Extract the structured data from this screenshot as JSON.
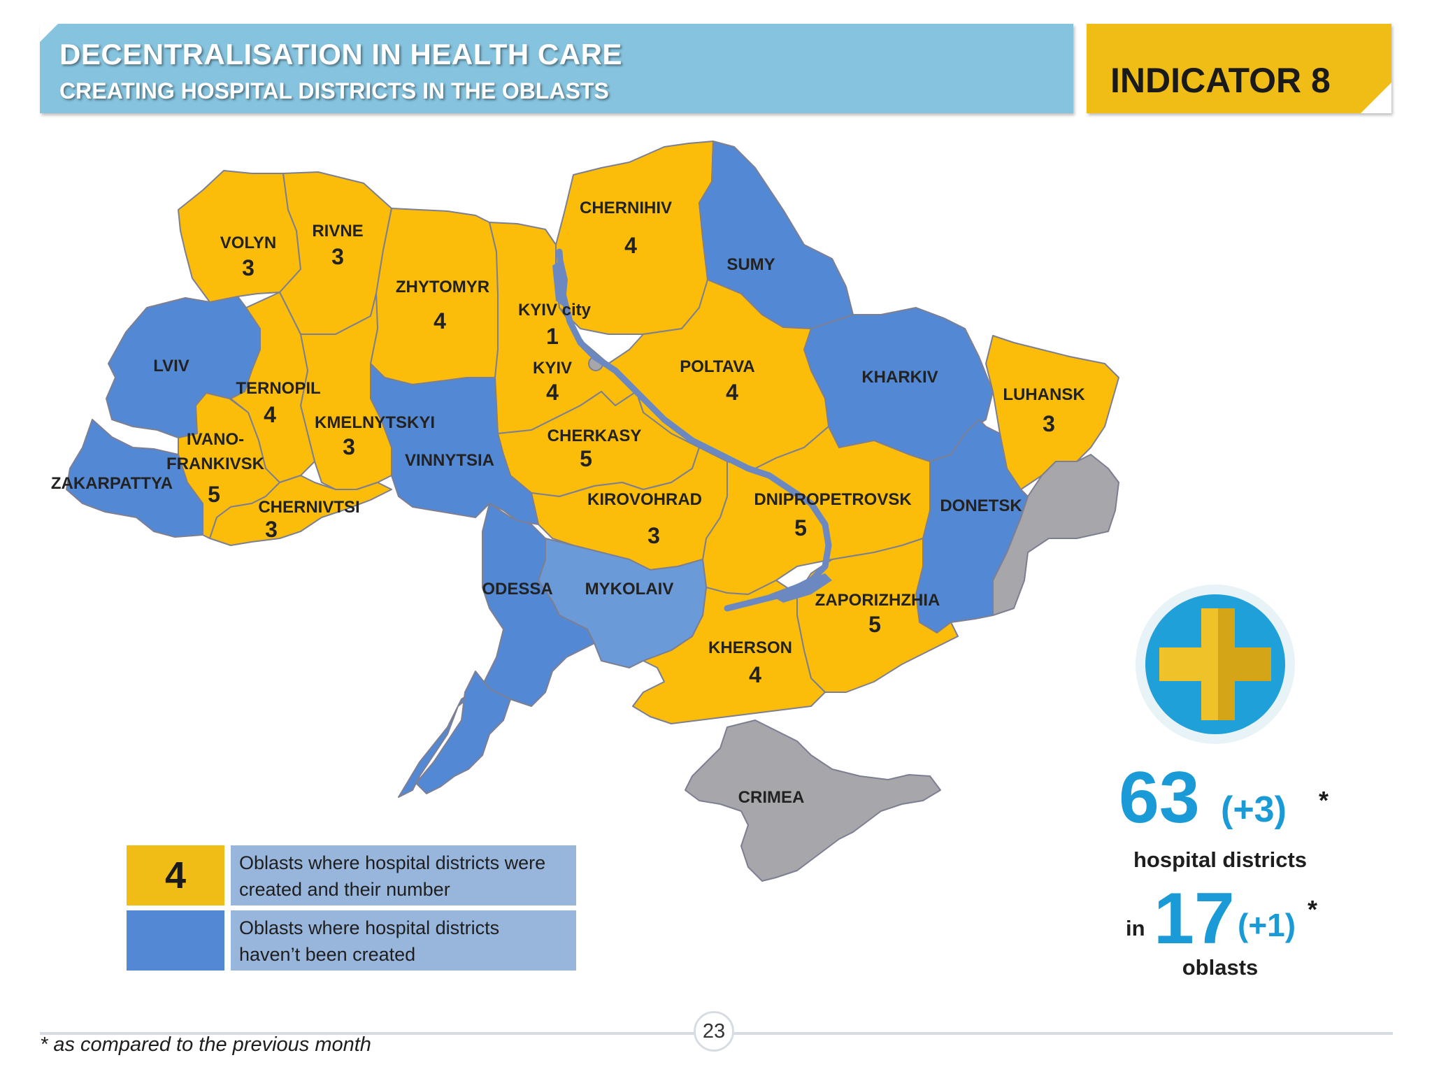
{
  "header": {
    "title": "DECENTRALISATION IN HEALTH CARE",
    "subtitle": "CREATING HOSPITAL DISTRICTS IN THE OBLASTS",
    "indicator": "INDICATOR 8"
  },
  "colors": {
    "created": "#fcbd0a",
    "not_created": "#5389d4",
    "mykolaiv": "#6b9ad9",
    "occupied": "#a7a6ab",
    "header_bg": "#86c3de",
    "indicator_bg": "#f0bd16",
    "stat_blue": "#1a9ad6"
  },
  "regions": {
    "volyn": {
      "name": "VOLYN",
      "count": "3"
    },
    "rivne": {
      "name": "RIVNE",
      "count": "3"
    },
    "zhytomyr": {
      "name": "ZHYTOMYR",
      "count": "4"
    },
    "chernihiv": {
      "name": "CHERNIHIV",
      "count": "4"
    },
    "sumy": {
      "name": "SUMY"
    },
    "kyiv_city": {
      "name": "KYIV city",
      "count": "1"
    },
    "kyiv": {
      "name": "KYIV",
      "count": "4"
    },
    "poltava": {
      "name": "POLTAVA",
      "count": "4"
    },
    "kharkiv": {
      "name": "KHARKIV"
    },
    "luhansk": {
      "name": "LUHANSK",
      "count": "3"
    },
    "lviv": {
      "name": "LVIV"
    },
    "ternopil": {
      "name": "TERNOPIL",
      "count": "4"
    },
    "khmelnytskyi": {
      "name": "KMELNYTSKYI",
      "count": "3"
    },
    "vinnytsia": {
      "name": "VINNYTSIA"
    },
    "cherkasy": {
      "name": "CHERKASY",
      "count": "5"
    },
    "ivano_frankivsk": {
      "name_line1": "IVANO-",
      "name_line2": "FRANKIVSK",
      "count": "5"
    },
    "zakarpattya": {
      "name": "ZAKARPATTYA"
    },
    "chernivtsi": {
      "name": "CHERNIVTSI",
      "count": "3"
    },
    "kirovohrad": {
      "name": "KIROVOHRAD",
      "count": "3"
    },
    "dnipropetrovsk": {
      "name": "DNIPROPETROVSK",
      "count": "5"
    },
    "donetsk": {
      "name": "DONETSK"
    },
    "odessa": {
      "name": "ODESSA"
    },
    "mykolaiv": {
      "name": "MYKOLAIV"
    },
    "zaporizhzhia": {
      "name": "ZAPORIZHZHIA",
      "count": "5"
    },
    "kherson": {
      "name": "KHERSON",
      "count": "4"
    },
    "crimea": {
      "name": "CRIMEA"
    }
  },
  "legend": {
    "sample_number": "4",
    "created_line1": "Oblasts where hospital districts were",
    "created_line2": "created and their number",
    "not_created_line1": "Oblasts where hospital districts",
    "not_created_line2": "haven’t been created"
  },
  "stats": {
    "districts_total": "63",
    "districts_change": "(+3)",
    "star": "*",
    "districts_label": "hospital districts",
    "in_label": "in",
    "oblasts_total": "17",
    "oblasts_change": "(+1)",
    "oblasts_label": "oblasts",
    "icon": "medical-cross-icon"
  },
  "footer": {
    "page_number": "23",
    "footnote": "* as compared to the previous month"
  }
}
